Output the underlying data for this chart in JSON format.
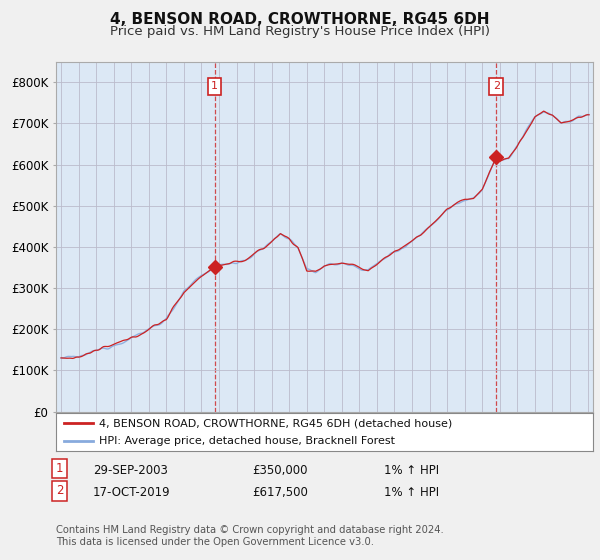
{
  "title": "4, BENSON ROAD, CROWTHORNE, RG45 6DH",
  "subtitle": "Price paid vs. HM Land Registry's House Price Index (HPI)",
  "ylabel_ticks": [
    "£0",
    "£100K",
    "£200K",
    "£300K",
    "£400K",
    "£500K",
    "£600K",
    "£700K",
    "£800K"
  ],
  "ytick_values": [
    0,
    100000,
    200000,
    300000,
    400000,
    500000,
    600000,
    700000,
    800000
  ],
  "ylim": [
    0,
    850000
  ],
  "xlim_start": 1994.7,
  "xlim_end": 2025.3,
  "line_color_hpi": "#88aadd",
  "line_color_price": "#cc2222",
  "dashed_color": "#cc2222",
  "plot_bg_color": "#dce8f5",
  "background_color": "#f0f0f0",
  "marker1_x": 2003.75,
  "marker1_y": 350000,
  "marker2_x": 2019.8,
  "marker2_y": 617500,
  "legend_line1": "4, BENSON ROAD, CROWTHORNE, RG45 6DH (detached house)",
  "legend_line2": "HPI: Average price, detached house, Bracknell Forest",
  "annotation1_date": "29-SEP-2003",
  "annotation1_price": "£350,000",
  "annotation1_hpi": "1% ↑ HPI",
  "annotation2_date": "17-OCT-2019",
  "annotation2_price": "£617,500",
  "annotation2_hpi": "1% ↑ HPI",
  "footnote": "Contains HM Land Registry data © Crown copyright and database right 2024.\nThis data is licensed under the Open Government Licence v3.0.",
  "title_fontsize": 11,
  "subtitle_fontsize": 9.5,
  "tick_fontsize": 8.5
}
